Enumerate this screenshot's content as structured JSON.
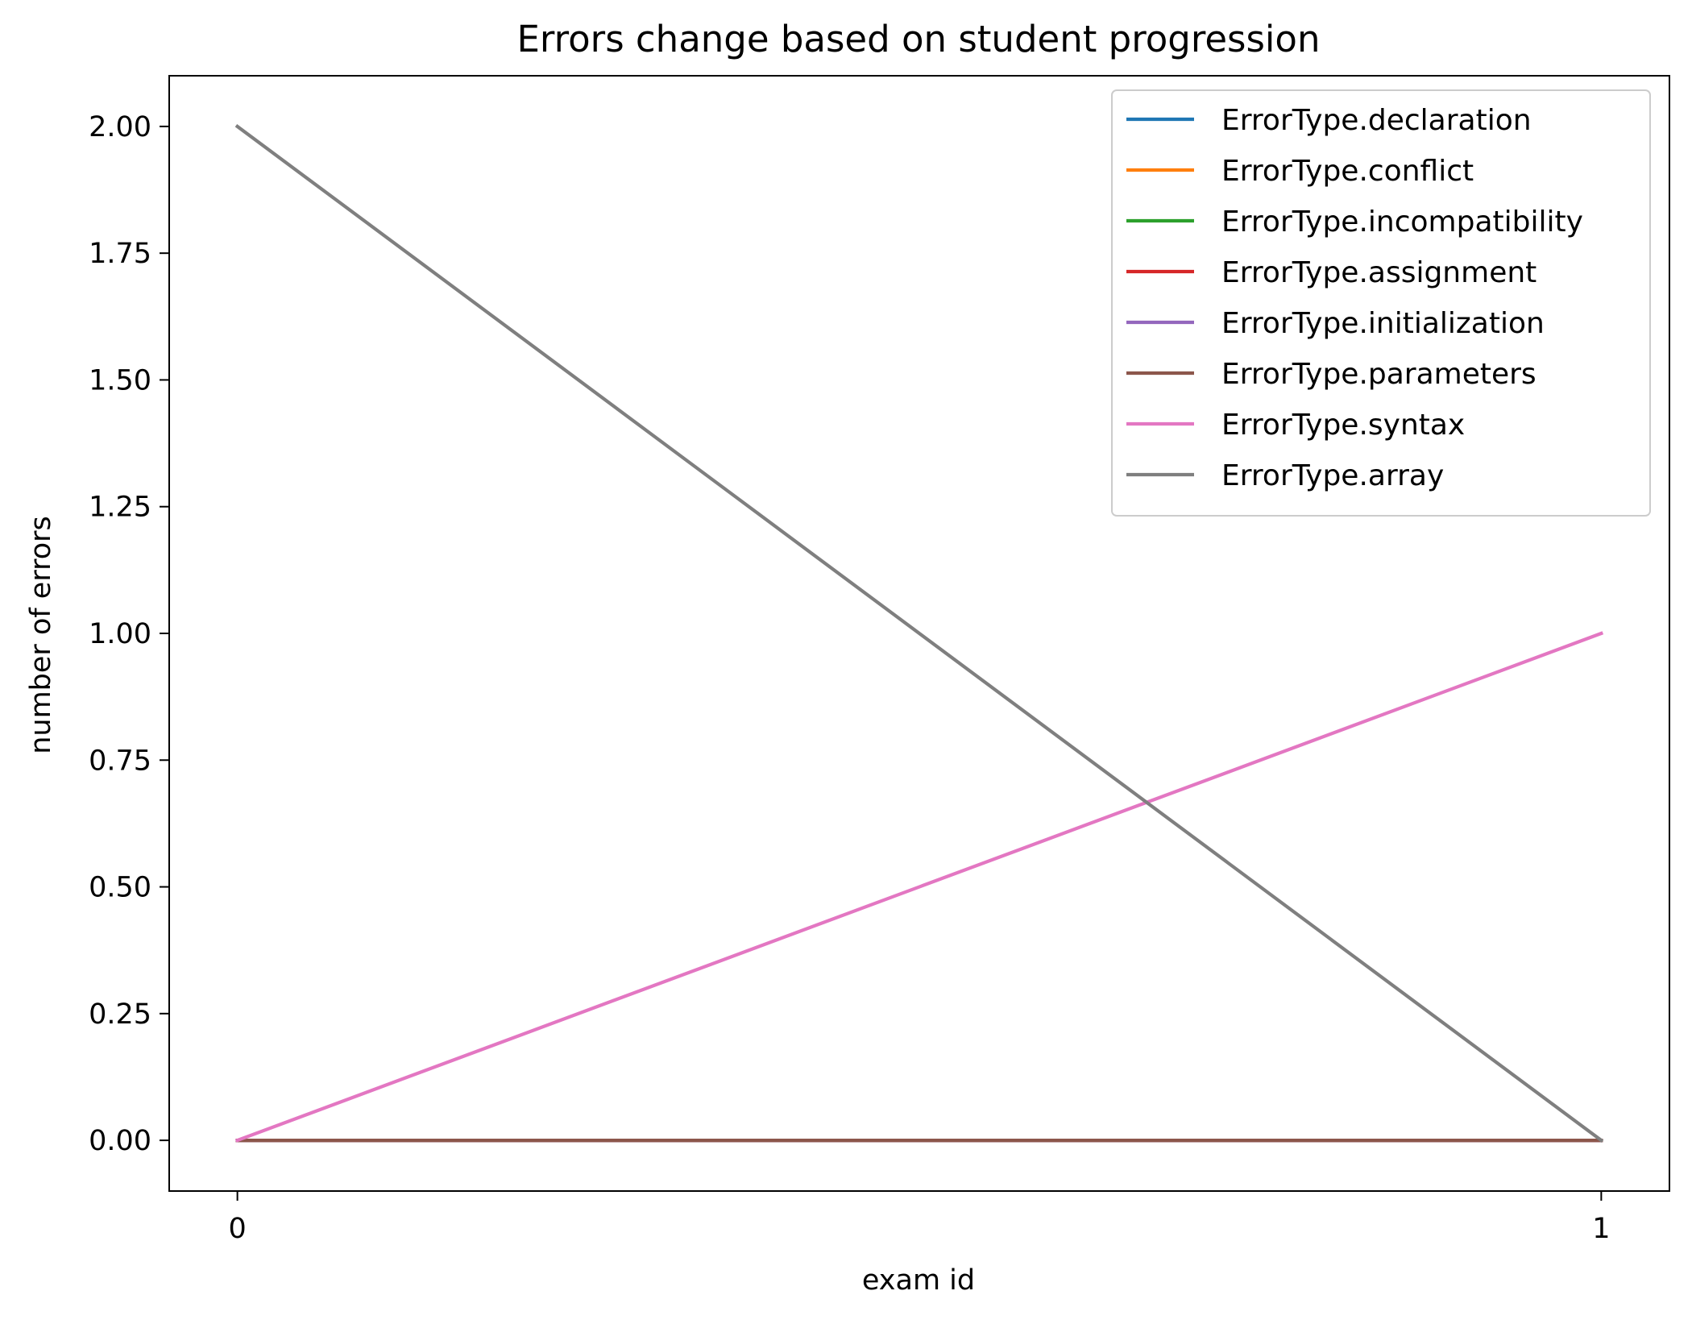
{
  "chart_data": {
    "type": "line",
    "title": "Errors change based on student progression",
    "xlabel": "exam id",
    "ylabel": "number of errors",
    "x": [
      0,
      1
    ],
    "xticks": [
      "0",
      "1"
    ],
    "yticks": [
      "0.00",
      "0.25",
      "0.50",
      "0.75",
      "1.00",
      "1.25",
      "1.50",
      "1.75",
      "2.00"
    ],
    "xlim": [
      -0.05,
      1.05
    ],
    "ylim": [
      -0.1,
      2.1
    ],
    "grid": false,
    "legend_position": "top-right",
    "series": [
      {
        "name": "ErrorType.declaration",
        "values": [
          0,
          0
        ],
        "color": "#1f77b4"
      },
      {
        "name": "ErrorType.conflict",
        "values": [
          0,
          0
        ],
        "color": "#ff7f0e"
      },
      {
        "name": "ErrorType.incompatibility",
        "values": [
          0,
          0
        ],
        "color": "#2ca02c"
      },
      {
        "name": "ErrorType.assignment",
        "values": [
          0,
          0
        ],
        "color": "#d62728"
      },
      {
        "name": "ErrorType.initialization",
        "values": [
          0,
          0
        ],
        "color": "#9467bd"
      },
      {
        "name": "ErrorType.parameters",
        "values": [
          0,
          0
        ],
        "color": "#8c564b"
      },
      {
        "name": "ErrorType.syntax",
        "values": [
          0,
          1
        ],
        "color": "#e377c2"
      },
      {
        "name": "ErrorType.array",
        "values": [
          2,
          0
        ],
        "color": "#7f7f7f"
      }
    ]
  }
}
